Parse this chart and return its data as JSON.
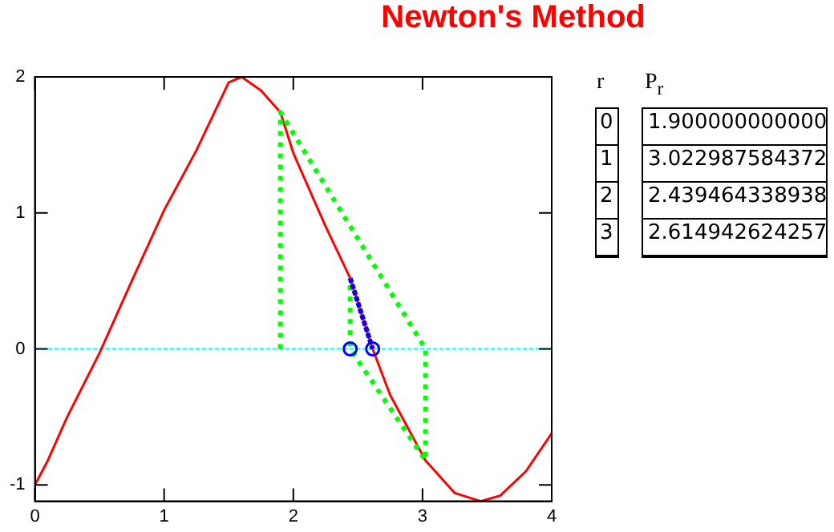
{
  "chart_data": {
    "type": "line",
    "title": "Newton's Method",
    "xlim": [
      0,
      4
    ],
    "ylim": [
      -1.12,
      2
    ],
    "xticks": [
      0,
      1,
      2,
      3,
      4
    ],
    "yticks": [
      -1,
      0,
      1,
      2
    ],
    "grid": false,
    "legend": false,
    "series": [
      {
        "color": "#ff0000",
        "marker": "none",
        "line_style": "solid",
        "x": [
          0,
          0.1,
          0.25,
          0.5,
          0.75,
          1,
          1.25,
          1.5,
          1.6,
          1.75,
          1.9,
          2,
          2.25,
          2.44,
          2.614,
          2.75,
          3.023,
          3.25,
          3.45,
          3.6,
          3.8,
          4
        ],
        "values": [
          -1,
          -0.82,
          -0.5,
          -0.03,
          0.5,
          1.02,
          1.46,
          1.96,
          2,
          1.9,
          1.74,
          1.44,
          0.9,
          0.52,
          0,
          -0.34,
          -0.82,
          -1.06,
          -1.12,
          -1.08,
          -0.9,
          -0.62
        ]
      },
      {
        "color": "#00ff00",
        "marker": "none",
        "line_style": "dotted",
        "x": [
          1.9,
          1.9,
          3.023,
          3.023,
          2.44,
          2.44
        ],
        "values": [
          0,
          1.74,
          0,
          -0.82,
          0,
          0.52
        ]
      },
      {
        "color": "#0000ff",
        "marker": "none",
        "line_style": "dashed",
        "x": [
          2.44,
          2.614
        ],
        "values": [
          0.52,
          0
        ]
      },
      {
        "type": "scatter",
        "color": "#0000ff",
        "marker": "circle",
        "x": [
          2.44,
          2.614
        ],
        "values": [
          0,
          0
        ]
      }
    ],
    "ref_lines": [
      {
        "axis": "y",
        "value": 0,
        "color": "#00ffff",
        "line_style": "dashed"
      }
    ],
    "annotations": [
      "r",
      "P$_{r}$",
      "0",
      "1.900000000000",
      "1",
      "3.022987584372",
      "2",
      "2.439464338938",
      "3",
      "2.614942624257"
    ]
  }
}
